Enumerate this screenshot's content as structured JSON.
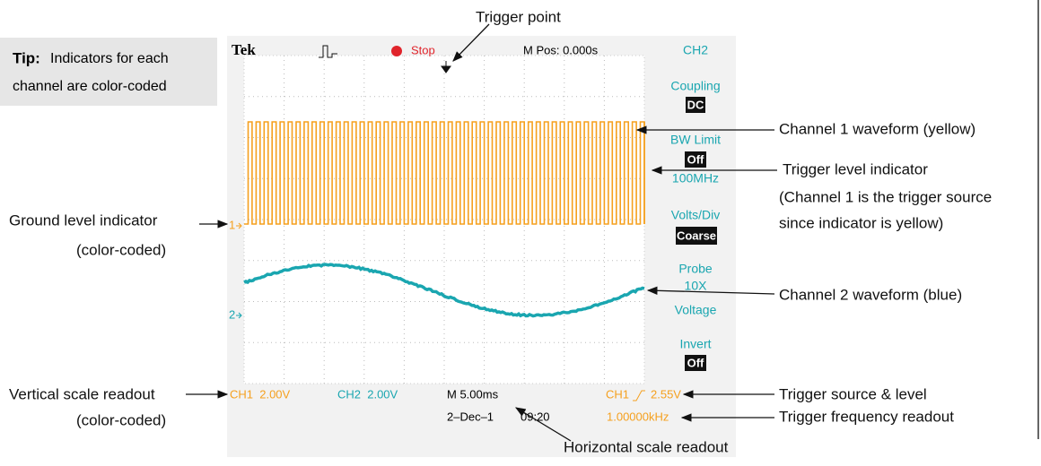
{
  "tip": {
    "label": "Tip:",
    "lines": [
      "Indicators for each",
      "channel are color-coded"
    ]
  },
  "screen": {
    "brand": "Tek",
    "status": "Stop",
    "position": "M Pos: 0.000s",
    "channel_markers": [
      "1",
      "2"
    ],
    "menu": {
      "title": "CH2",
      "items": [
        {
          "label": "Coupling",
          "value": "DC"
        },
        {
          "label": "BW Limit",
          "value": "Off",
          "extra": "100MHz"
        },
        {
          "label": "Volts/Div",
          "value": "Coarse"
        },
        {
          "label": "Probe",
          "value": "10X",
          "extra": "Voltage"
        },
        {
          "label": "Invert",
          "value": "Off"
        }
      ]
    },
    "readouts": {
      "ch1_scale": "CH1  2.00V",
      "ch2_scale": "CH2  2.00V",
      "time_scale": "M 5.00ms",
      "date": "2–Dec–1",
      "time": "09:20",
      "trigger_source": "CH1",
      "trigger_level": "2.55V",
      "frequency": "1.00000kHz"
    }
  },
  "callouts": {
    "trigger_point": "Trigger point",
    "ch1_waveform": "Channel 1 waveform (yellow)",
    "trigger_level": [
      "Trigger level indicator",
      "(Channel 1 is the trigger source",
      "since indicator is yellow)"
    ],
    "ground_level": [
      "Ground level indicator",
      "(color-coded)"
    ],
    "ch2_waveform": "Channel 2 waveform (blue)",
    "vertical_scale": [
      "Vertical scale readout",
      "(color-coded)"
    ],
    "trigger_source": "Trigger source & level",
    "trigger_frequency": "Trigger frequency readout",
    "horizontal_scale": "Horizontal scale readout"
  }
}
